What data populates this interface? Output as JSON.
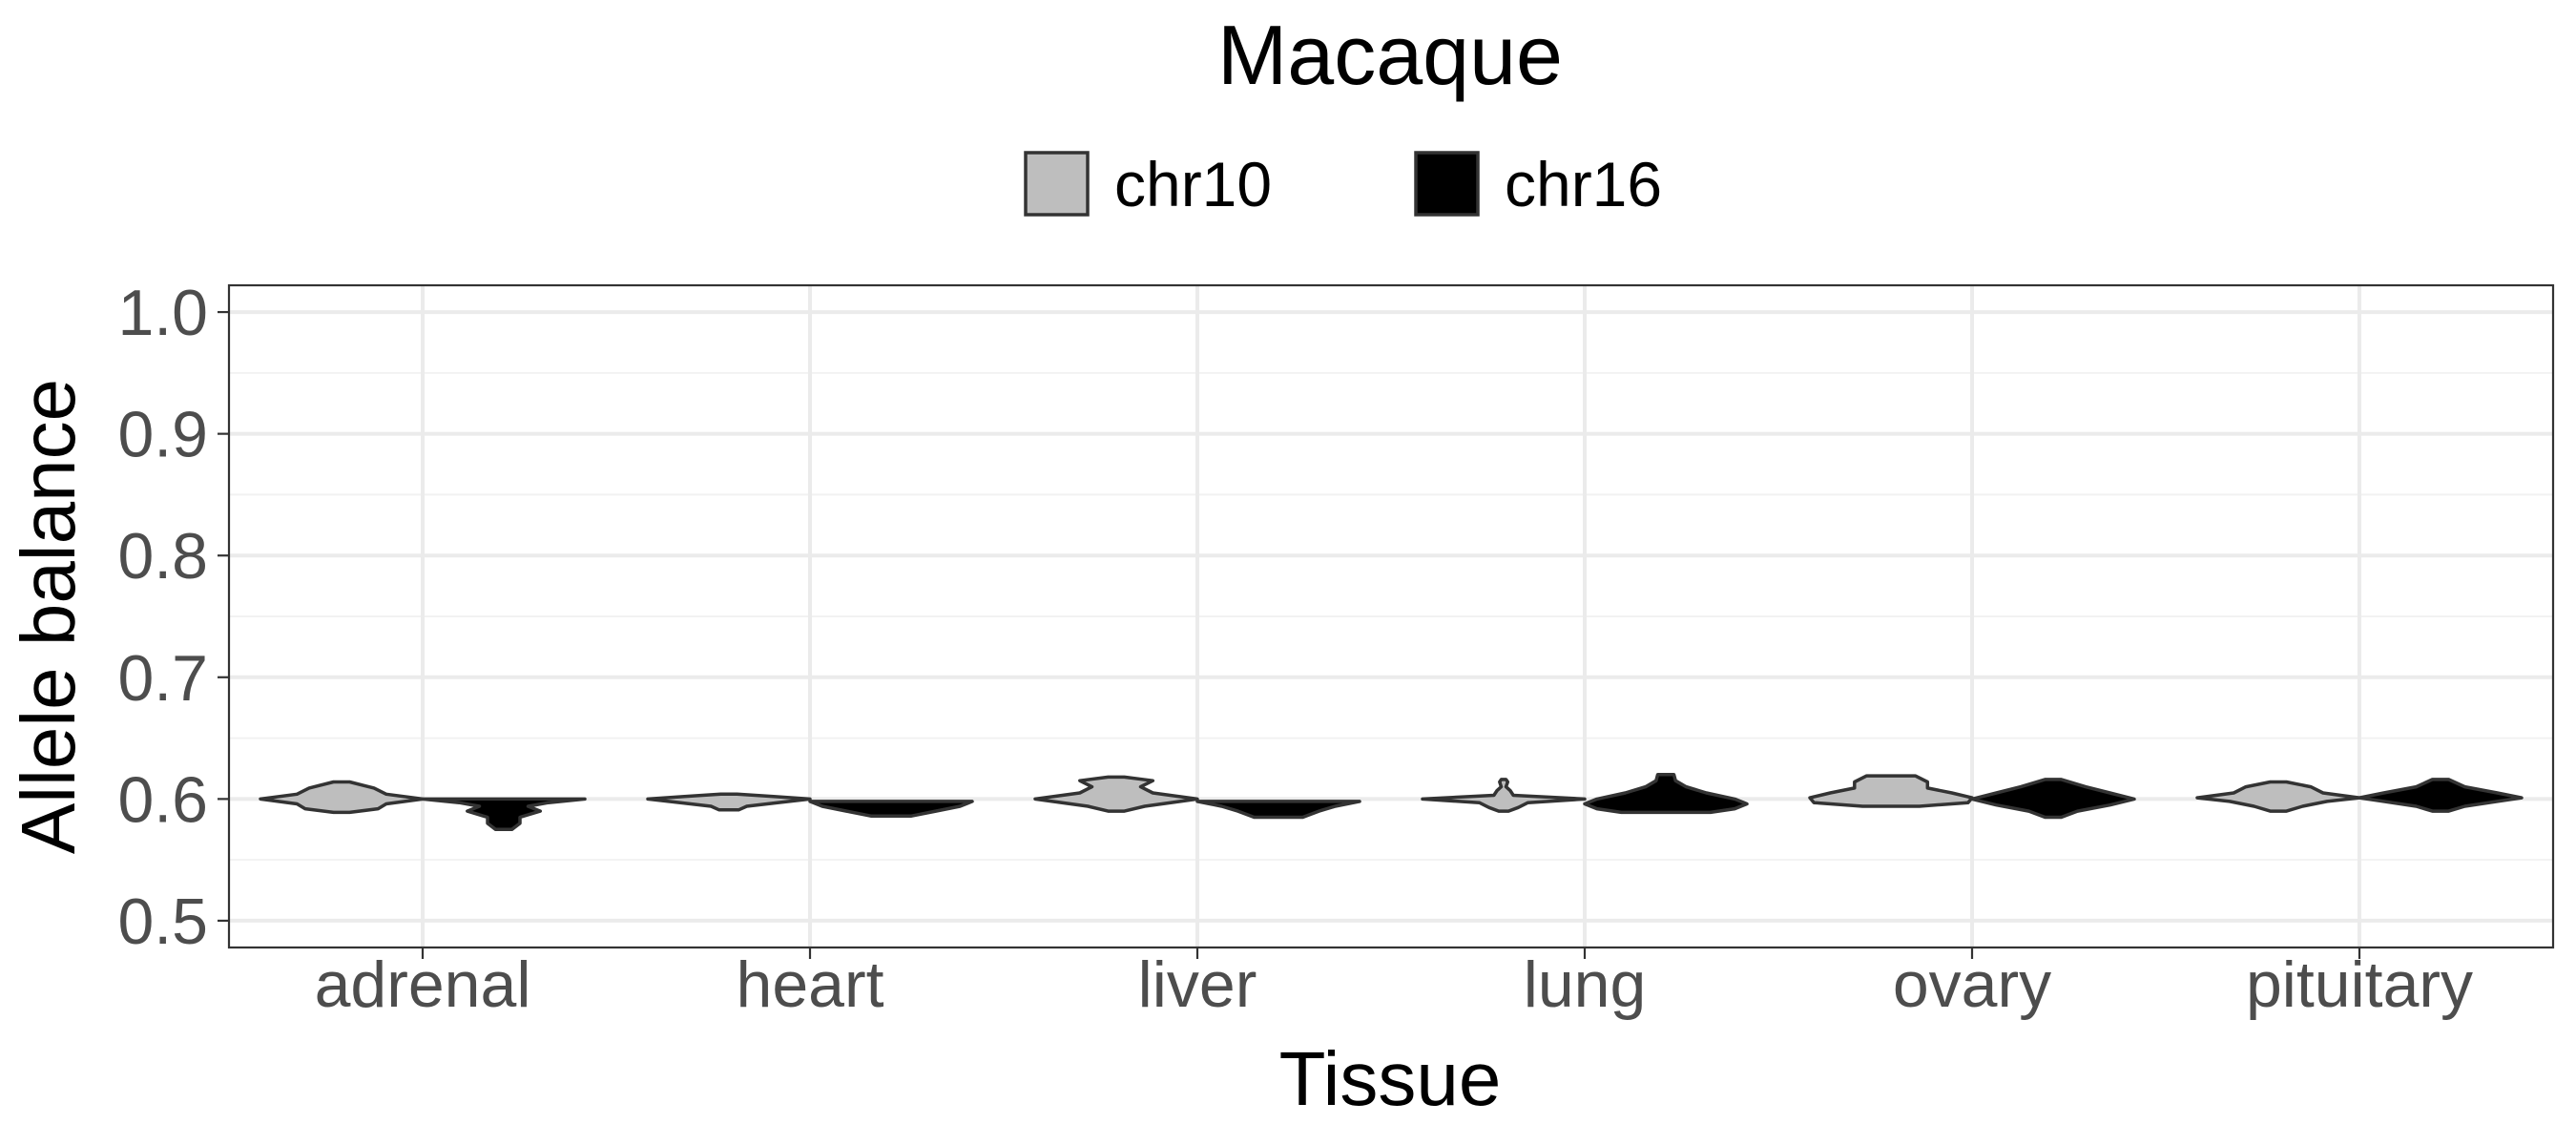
{
  "chart_data": {
    "type": "violin",
    "title": "Macaque",
    "xlabel": "Tissue",
    "ylabel": "Allele balance",
    "ylim": [
      0.478,
      1.022
    ],
    "yticks": [
      "0.5",
      "0.6",
      "0.7",
      "0.8",
      "0.9",
      "1.0"
    ],
    "categories": [
      "adrenal",
      "heart",
      "liver",
      "lung",
      "ovary",
      "pituitary"
    ],
    "grid": true,
    "legend_position": "top",
    "series": [
      {
        "name": "chr10",
        "color": "#bebebe",
        "violins": [
          {
            "category": "adrenal",
            "min": 0.589,
            "max": 0.614,
            "profile": [
              [
                0.589,
                0.1
              ],
              [
                0.592,
                0.45
              ],
              [
                0.596,
                0.55
              ],
              [
                0.6,
                1.0
              ],
              [
                0.604,
                0.55
              ],
              [
                0.609,
                0.4
              ],
              [
                0.614,
                0.1
              ]
            ]
          },
          {
            "category": "heart",
            "min": 0.591,
            "max": 0.604,
            "profile": [
              [
                0.591,
                0.12
              ],
              [
                0.594,
                0.22
              ],
              [
                0.597,
                0.6
              ],
              [
                0.6,
                1.0
              ],
              [
                0.602,
                0.55
              ],
              [
                0.604,
                0.1
              ]
            ]
          },
          {
            "category": "liver",
            "min": 0.59,
            "max": 0.618,
            "profile": [
              [
                0.59,
                0.1
              ],
              [
                0.594,
                0.35
              ],
              [
                0.6,
                1.0
              ],
              [
                0.605,
                0.45
              ],
              [
                0.61,
                0.3
              ],
              [
                0.615,
                0.45
              ],
              [
                0.618,
                0.1
              ]
            ]
          },
          {
            "category": "lung",
            "min": 0.59,
            "max": 0.616,
            "profile": [
              [
                0.59,
                0.06
              ],
              [
                0.593,
                0.18
              ],
              [
                0.597,
                0.3
              ],
              [
                0.6,
                1.0
              ],
              [
                0.603,
                0.12
              ],
              [
                0.607,
                0.08
              ],
              [
                0.61,
                0.03
              ],
              [
                0.614,
                0.05
              ],
              [
                0.616,
                0.03
              ]
            ]
          },
          {
            "category": "ovary",
            "min": 0.594,
            "max": 0.619,
            "profile": [
              [
                0.594,
                0.35
              ],
              [
                0.597,
                0.95
              ],
              [
                0.601,
                1.0
              ],
              [
                0.605,
                0.75
              ],
              [
                0.609,
                0.45
              ],
              [
                0.614,
                0.45
              ],
              [
                0.619,
                0.3
              ]
            ]
          },
          {
            "category": "pituitary",
            "min": 0.59,
            "max": 0.614,
            "profile": [
              [
                0.59,
                0.1
              ],
              [
                0.594,
                0.3
              ],
              [
                0.598,
                0.6
              ],
              [
                0.601,
                1.0
              ],
              [
                0.605,
                0.55
              ],
              [
                0.61,
                0.4
              ],
              [
                0.614,
                0.1
              ]
            ]
          }
        ]
      },
      {
        "name": "chr16",
        "color": "#000000",
        "violins": [
          {
            "category": "adrenal",
            "min": 0.575,
            "max": 0.6,
            "profile": [
              [
                0.575,
                0.1
              ],
              [
                0.58,
                0.2
              ],
              [
                0.585,
                0.2
              ],
              [
                0.59,
                0.45
              ],
              [
                0.594,
                0.3
              ],
              [
                0.597,
                0.55
              ],
              [
                0.6,
                1.0
              ]
            ]
          },
          {
            "category": "heart",
            "min": 0.586,
            "max": 0.598,
            "profile": [
              [
                0.586,
                0.25
              ],
              [
                0.59,
                0.55
              ],
              [
                0.594,
                0.85
              ],
              [
                0.598,
                1.0
              ]
            ]
          },
          {
            "category": "liver",
            "min": 0.585,
            "max": 0.598,
            "profile": [
              [
                0.585,
                0.3
              ],
              [
                0.59,
                0.5
              ],
              [
                0.594,
                0.7
              ],
              [
                0.598,
                1.0
              ]
            ]
          },
          {
            "category": "lung",
            "min": 0.589,
            "max": 0.62,
            "profile": [
              [
                0.589,
                0.55
              ],
              [
                0.592,
                0.85
              ],
              [
                0.596,
                1.0
              ],
              [
                0.6,
                0.85
              ],
              [
                0.605,
                0.5
              ],
              [
                0.61,
                0.25
              ],
              [
                0.615,
                0.12
              ],
              [
                0.62,
                0.1
              ]
            ]
          },
          {
            "category": "ovary",
            "min": 0.585,
            "max": 0.616,
            "profile": [
              [
                0.585,
                0.1
              ],
              [
                0.59,
                0.3
              ],
              [
                0.595,
                0.7
              ],
              [
                0.6,
                1.0
              ],
              [
                0.605,
                0.7
              ],
              [
                0.61,
                0.4
              ],
              [
                0.616,
                0.1
              ]
            ]
          },
          {
            "category": "pituitary",
            "min": 0.59,
            "max": 0.616,
            "profile": [
              [
                0.59,
                0.1
              ],
              [
                0.594,
                0.3
              ],
              [
                0.598,
                0.7
              ],
              [
                0.601,
                1.0
              ],
              [
                0.605,
                0.7
              ],
              [
                0.61,
                0.3
              ],
              [
                0.616,
                0.1
              ]
            ]
          }
        ]
      }
    ]
  }
}
